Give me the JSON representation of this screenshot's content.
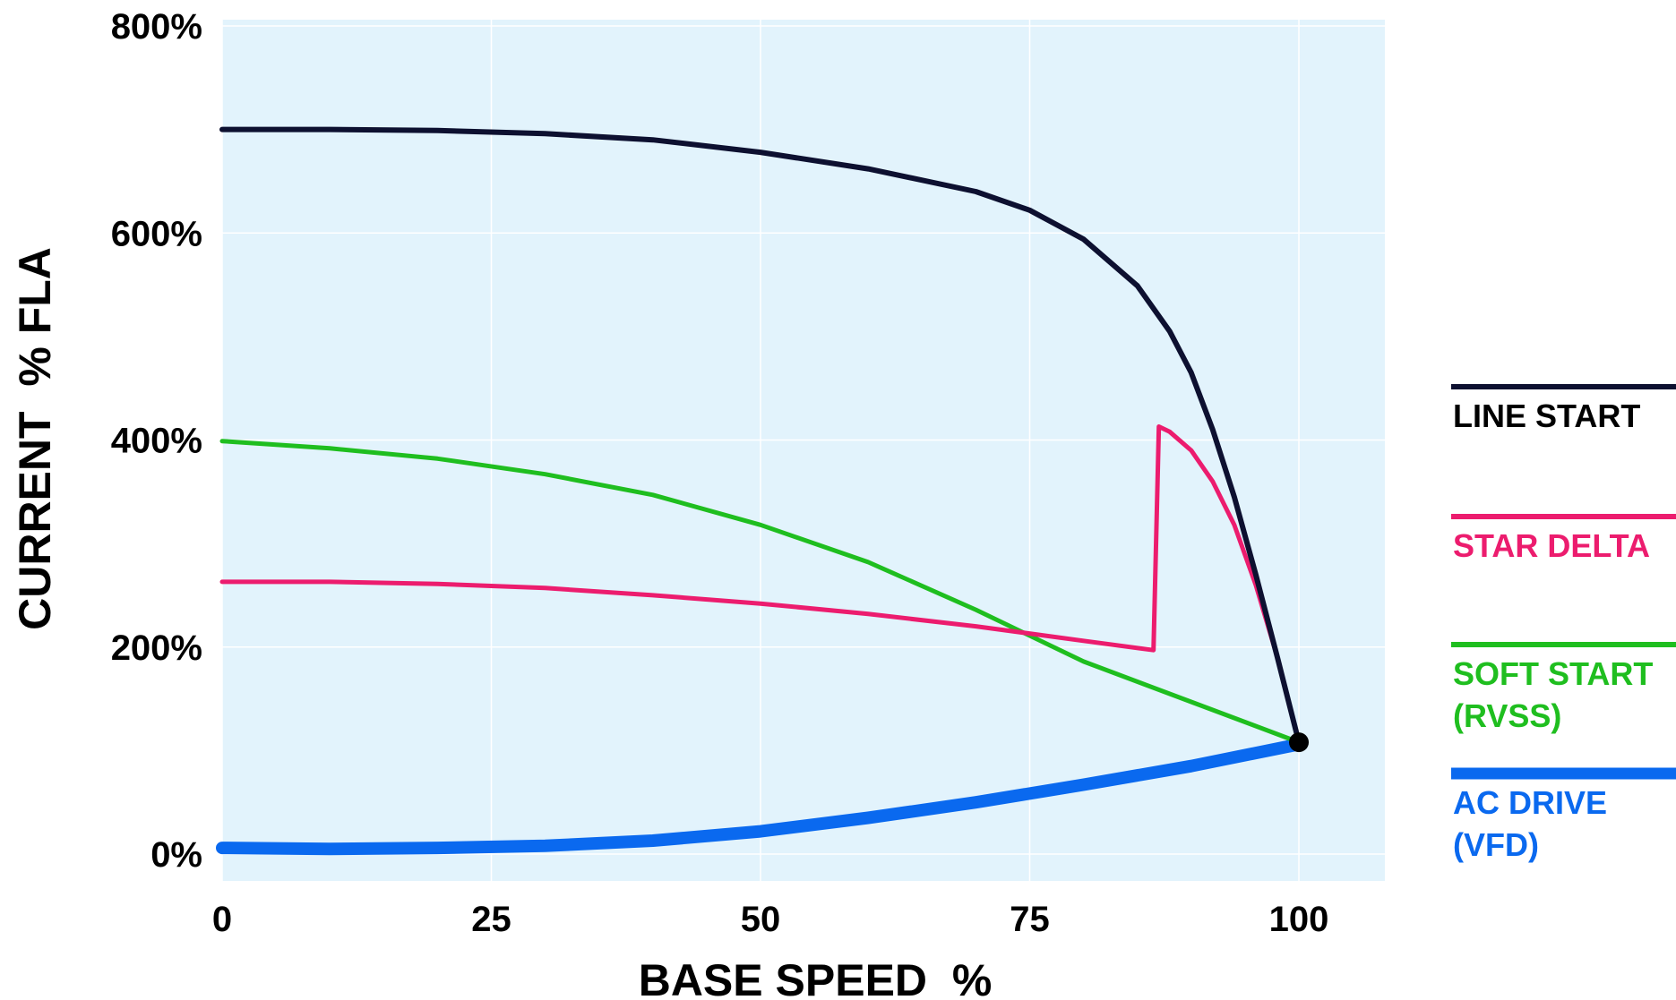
{
  "chart_data": {
    "type": "line",
    "title": "",
    "xlabel": "BASE SPEED  %",
    "ylabel": "CURRENT  % FLA",
    "xlim": [
      0,
      108
    ],
    "ylim": [
      -5,
      800
    ],
    "x_ticks": [
      "0",
      "25",
      "50",
      "75",
      "100"
    ],
    "y_ticks": [
      "0%",
      "200%",
      "400%",
      "600%",
      "800%"
    ],
    "grid": true,
    "plot_background": "#e2f3fc",
    "legend_position": "right",
    "series": [
      {
        "name": "LINE START",
        "color": "#0d1030",
        "x": [
          0,
          10,
          20,
          30,
          40,
          50,
          60,
          70,
          75,
          80,
          85,
          88,
          90,
          92,
          94,
          96,
          98,
          100
        ],
        "y": [
          700,
          700,
          699,
          696,
          690,
          678,
          662,
          640,
          622,
          594,
          549,
          505,
          465,
          410,
          345,
          270,
          190,
          108
        ]
      },
      {
        "name": "STAR DELTA",
        "color": "#ec1c6e",
        "x": [
          0,
          10,
          20,
          30,
          40,
          50,
          60,
          70,
          80,
          86.5,
          86.5,
          87,
          88,
          90,
          92,
          94,
          96,
          98,
          100
        ],
        "y": [
          263,
          263,
          261,
          257,
          250,
          242,
          232,
          220,
          206,
          197,
          197,
          413,
          408,
          390,
          360,
          318,
          260,
          190,
          108
        ]
      },
      {
        "name": "SOFT START\n(RVSS)",
        "color": "#1fbe1f",
        "x": [
          0,
          10,
          20,
          30,
          40,
          50,
          60,
          70,
          80,
          90,
          100
        ],
        "y": [
          399,
          392,
          382,
          367,
          347,
          318,
          282,
          236,
          186,
          147,
          108
        ]
      },
      {
        "name": "AC DRIVE\n(VFD)",
        "color": "#0a69ef",
        "x": [
          0,
          10,
          20,
          30,
          40,
          50,
          60,
          70,
          80,
          90,
          100
        ],
        "y": [
          6,
          5,
          6,
          8,
          13,
          22,
          35,
          50,
          67,
          85,
          106
        ]
      }
    ],
    "end_marker": {
      "x": 100,
      "y": 108,
      "color": "#000000"
    }
  },
  "legend": {
    "items": [
      {
        "lines": [
          "LINE START"
        ],
        "color": "#0d1030",
        "text_color": "#000000",
        "width": 6
      },
      {
        "lines": [
          "STAR DELTA"
        ],
        "color": "#ec1c6e",
        "text_color": "#ec1c6e",
        "width": 6
      },
      {
        "lines": [
          "SOFT START",
          "(RVSS)"
        ],
        "color": "#1fbe1f",
        "text_color": "#1fbe1f",
        "width": 6
      },
      {
        "lines": [
          "AC DRIVE",
          "(VFD)"
        ],
        "color": "#0a69ef",
        "text_color": "#0a69ef",
        "width": 13
      }
    ]
  }
}
